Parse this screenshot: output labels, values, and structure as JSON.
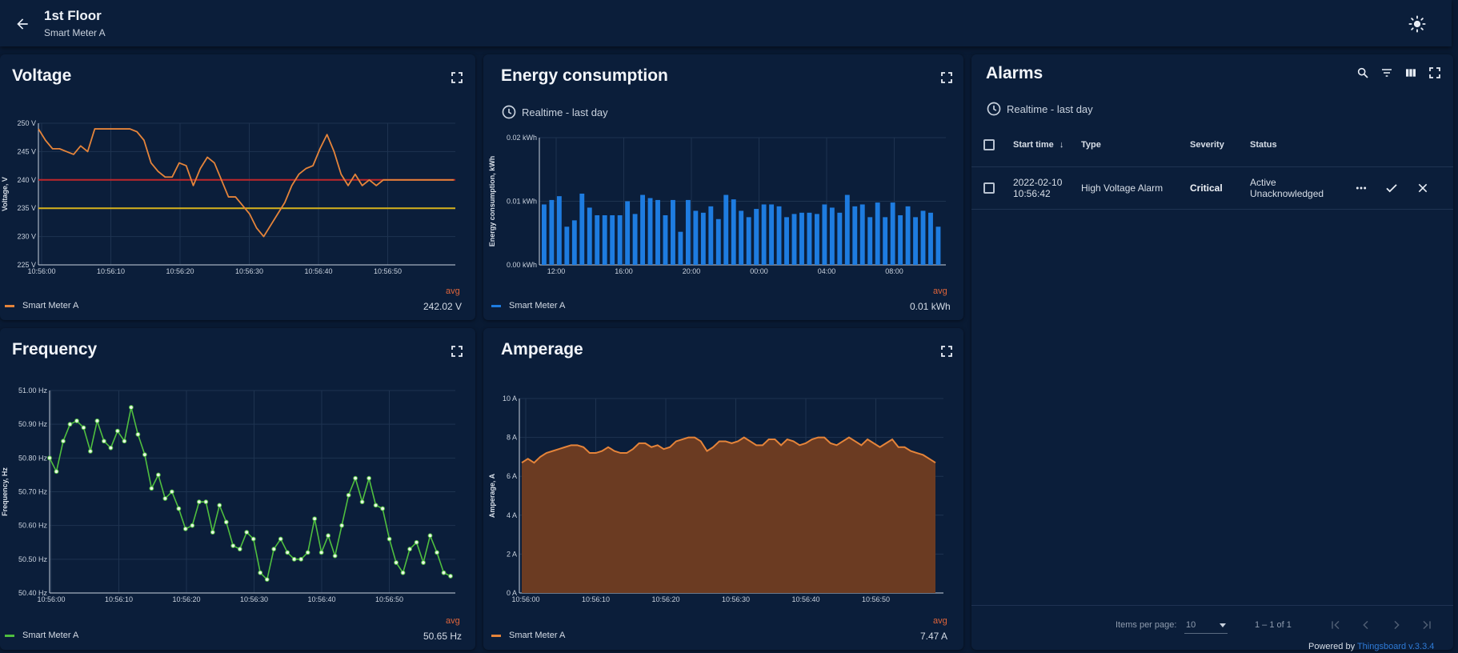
{
  "header": {
    "title": "1st Floor",
    "subtitle": "Smart Meter A"
  },
  "colors": {
    "background": "#091a33",
    "card": "#0b1e3a",
    "orange": "#e5843a",
    "blue": "#1e7ce0",
    "green": "#4fbf3f",
    "amber_fill": "#6b3b22",
    "red_threshold": "#c0262b",
    "yellow_threshold": "#d8b21d",
    "avg": "#e0653a"
  },
  "voltage": {
    "title": "Voltage",
    "legend_name": "Smart Meter A",
    "avg_label": "avg",
    "avg_value": "242.02 V"
  },
  "energy": {
    "title": "Energy consumption",
    "timewindow": "Realtime - last day",
    "legend_name": "Smart Meter A",
    "avg_label": "avg",
    "avg_value": "0.01 kWh"
  },
  "frequency": {
    "title": "Frequency",
    "legend_name": "Smart Meter A",
    "avg_label": "avg",
    "avg_value": "50.65 Hz"
  },
  "amperage": {
    "title": "Amperage",
    "legend_name": "Smart Meter A",
    "avg_label": "avg",
    "avg_value": "7.47 A"
  },
  "alarms": {
    "title": "Alarms",
    "timewindow": "Realtime - last day",
    "columns": [
      "Start time",
      "Type",
      "Severity",
      "Status"
    ],
    "rows": [
      {
        "start_date": "2022-02-10",
        "start_time": "10:56:42",
        "type": "High Voltage Alarm",
        "severity": "Critical",
        "status_line1": "Active",
        "status_line2": "Unacknowledged"
      }
    ],
    "items_per_page_label": "Items per page:",
    "items_per_page": "10",
    "range": "1 – 1 of 1"
  },
  "powered_by": {
    "prefix": "Powered by ",
    "link": "Thingsboard v.3.3.4"
  },
  "chart_data": [
    {
      "type": "line",
      "ylabel": "Voltage, V",
      "ylim": [
        225,
        250
      ],
      "yticks": [
        "225 V",
        "230 V",
        "235 V",
        "240 V",
        "245 V",
        "250 V"
      ],
      "xticks": [
        "10:56:00",
        "10:56:10",
        "10:56:20",
        "10:56:30",
        "10:56:40",
        "10:56:50"
      ],
      "x": [
        0,
        1,
        2,
        3,
        4,
        5,
        6,
        7,
        8,
        9,
        10,
        11,
        12,
        13,
        14,
        15,
        16,
        17,
        18,
        19,
        20,
        21,
        22,
        23,
        24,
        25,
        26,
        27,
        28,
        29,
        30,
        31,
        32,
        33,
        34,
        35,
        36,
        37,
        38,
        39,
        40,
        41,
        42,
        43,
        44,
        45,
        46,
        47,
        48,
        49,
        50,
        51,
        52,
        53,
        54,
        55,
        56,
        57,
        58,
        59
      ],
      "series": [
        {
          "name": "Smart Meter A",
          "values": [
            249,
            247,
            245.5,
            245.5,
            245,
            244.5,
            246,
            245,
            249,
            249,
            249,
            249,
            249,
            249,
            248.5,
            247,
            243,
            241.5,
            240.5,
            240.5,
            243,
            242.5,
            239,
            242,
            244,
            243,
            240,
            237,
            237,
            235.5,
            234,
            231.5,
            230,
            232,
            234,
            236,
            239,
            241,
            242,
            242.5,
            245.5,
            248,
            245,
            241,
            239,
            241,
            239,
            240,
            239,
            240,
            240,
            240,
            240,
            240,
            240,
            240,
            240,
            240,
            240,
            240
          ]
        }
      ],
      "thresholds": [
        240,
        235
      ]
    },
    {
      "type": "bar",
      "ylabel": "Energy consumption, kWh",
      "ylim": [
        0,
        0.02
      ],
      "yticks": [
        "0.00 kWh",
        "0.01 kWh",
        "0.02 kWh"
      ],
      "xticks": [
        "12:00",
        "16:00",
        "20:00",
        "00:00",
        "04:00",
        "08:00"
      ],
      "series": [
        {
          "name": "Smart Meter A",
          "values": [
            0.0095,
            0.0102,
            0.0108,
            0.006,
            0.007,
            0.0112,
            0.009,
            0.0078,
            0.0078,
            0.0078,
            0.0078,
            0.01,
            0.008,
            0.011,
            0.0105,
            0.0102,
            0.0078,
            0.0102,
            0.0052,
            0.0102,
            0.0085,
            0.0082,
            0.0092,
            0.0072,
            0.011,
            0.0103,
            0.0085,
            0.0075,
            0.0088,
            0.0095,
            0.0095,
            0.0092,
            0.0075,
            0.008,
            0.0082,
            0.0082,
            0.008,
            0.0095,
            0.009,
            0.0082,
            0.011,
            0.0092,
            0.0095,
            0.0075,
            0.0098,
            0.0075,
            0.0098,
            0.0078,
            0.0092,
            0.0075,
            0.0085,
            0.0082,
            0.006
          ]
        }
      ]
    },
    {
      "type": "line",
      "ylabel": "Frequency, Hz",
      "ylim": [
        50.4,
        51.0
      ],
      "yticks": [
        "50.40 Hz",
        "50.50 Hz",
        "50.60 Hz",
        "50.70 Hz",
        "50.80 Hz",
        "50.90 Hz",
        "51.00 Hz"
      ],
      "xticks": [
        "10:56:00",
        "10:56:10",
        "10:56:20",
        "10:56:30",
        "10:56:40",
        "10:56:50"
      ],
      "series": [
        {
          "name": "Smart Meter A",
          "values": [
            50.8,
            50.76,
            50.85,
            50.9,
            50.91,
            50.89,
            50.82,
            50.91,
            50.85,
            50.83,
            50.88,
            50.85,
            50.95,
            50.87,
            50.81,
            50.71,
            50.75,
            50.68,
            50.7,
            50.65,
            50.59,
            50.6,
            50.67,
            50.67,
            50.58,
            50.66,
            50.61,
            50.54,
            50.53,
            50.58,
            50.56,
            50.46,
            50.44,
            50.53,
            50.56,
            50.52,
            50.5,
            50.5,
            50.52,
            50.62,
            50.52,
            50.57,
            50.51,
            50.6,
            50.69,
            50.74,
            50.67,
            50.74,
            50.66,
            50.65,
            50.56,
            50.49,
            50.46,
            50.53,
            50.55,
            50.49,
            50.57,
            50.52,
            50.46,
            50.45
          ]
        }
      ]
    },
    {
      "type": "area",
      "ylabel": "Amperage, A",
      "ylim": [
        0,
        10
      ],
      "yticks": [
        "0 A",
        "2 A",
        "4 A",
        "6 A",
        "8 A",
        "10 A"
      ],
      "xticks": [
        "10:56:00",
        "10:56:10",
        "10:56:20",
        "10:56:30",
        "10:56:40",
        "10:56:50"
      ],
      "series": [
        {
          "name": "Smart Meter A",
          "values": [
            6.7,
            6.9,
            6.7,
            7.0,
            7.2,
            7.3,
            7.4,
            7.5,
            7.6,
            7.6,
            7.5,
            7.2,
            7.2,
            7.3,
            7.5,
            7.3,
            7.2,
            7.2,
            7.4,
            7.7,
            7.7,
            7.5,
            7.6,
            7.4,
            7.5,
            7.8,
            7.9,
            8.0,
            8.0,
            7.8,
            7.3,
            7.5,
            7.8,
            7.8,
            7.7,
            7.8,
            8.0,
            7.8,
            7.6,
            7.6,
            7.9,
            7.9,
            7.6,
            7.9,
            7.8,
            7.6,
            7.7,
            7.9,
            8.0,
            8.0,
            7.7,
            7.6,
            7.8,
            8.0,
            7.8,
            7.6,
            7.9,
            7.7,
            7.5,
            7.7,
            7.9,
            7.5,
            7.5,
            7.3,
            7.2,
            7.1,
            6.9,
            6.7
          ]
        }
      ]
    }
  ]
}
